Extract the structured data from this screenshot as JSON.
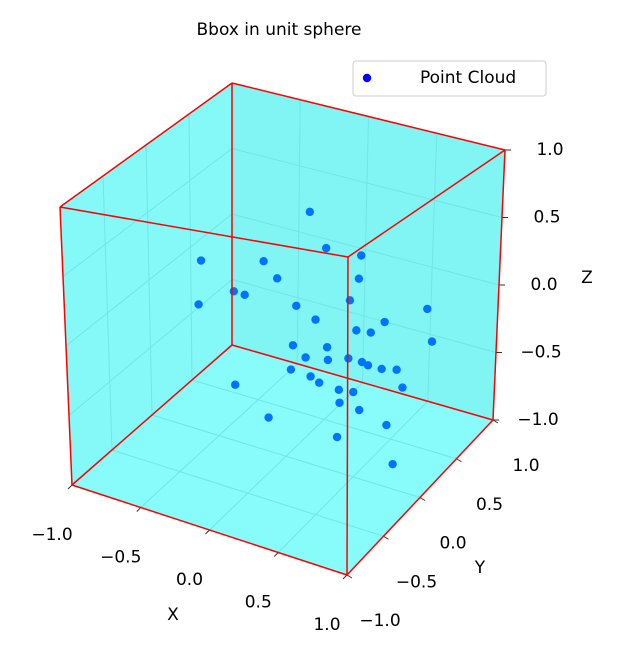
{
  "chart_data": {
    "type": "scatter3d",
    "title": "Bbox in unit sphere",
    "xlabel": "X",
    "ylabel": "Y",
    "zlabel": "Z",
    "xlim": [
      -1,
      1
    ],
    "ylim": [
      -1,
      1
    ],
    "zlim": [
      -1,
      1
    ],
    "xticks": [
      {
        "value": -1,
        "label": "−1.0"
      },
      {
        "value": -0.5,
        "label": "−0.5"
      },
      {
        "value": 0,
        "label": "0.0"
      },
      0.5,
      {
        "value": 1,
        "label": "1.0"
      }
    ],
    "yticks": [
      {
        "value": -1,
        "label": "−1.0"
      },
      {
        "value": -0.5,
        "label": "−0.5"
      },
      {
        "value": 0,
        "label": "0.0"
      },
      0.5,
      {
        "value": 1,
        "label": "1.0"
      }
    ],
    "zticks": [
      {
        "value": -1,
        "label": "−1.0"
      },
      {
        "value": -0.5,
        "label": "−0.5"
      },
      {
        "value": 0,
        "label": "0.0"
      },
      0.5,
      {
        "value": 1,
        "label": "1.0"
      }
    ],
    "grid": true,
    "legend": "upper right",
    "box_color": "#00ffff",
    "edge_color": "#ff0000",
    "series": [
      {
        "name": "Point Cloud",
        "color": "#0000ff",
        "x": [
          0.2,
          0.3,
          0.4,
          0.5,
          0.1,
          0.35,
          0.45,
          0.25,
          0.6,
          0.55,
          0.15,
          0.05,
          0.4,
          0.3,
          0.5,
          0.7,
          0.65,
          -0.1,
          -0.3,
          -0.5,
          -0.7,
          -0.8,
          -0.6,
          -0.4,
          0.8,
          0.9,
          0.85,
          0.75,
          0.2,
          0.0,
          0.6,
          -0.2,
          0.45,
          0.35,
          0.3,
          0.7,
          0.55,
          0.1,
          0.9,
          -0.3
        ],
        "y": [
          -0.1,
          0.0,
          0.1,
          -0.2,
          0.2,
          -0.3,
          0.3,
          0.1,
          0.0,
          -0.1,
          -0.2,
          0.0,
          0.2,
          -0.1,
          0.1,
          0.2,
          -0.2,
          0.3,
          0.4,
          0.2,
          0.1,
          0.3,
          0.5,
          0.4,
          0.1,
          0.3,
          -0.2,
          0.5,
          0.6,
          0.5,
          -0.4,
          -0.3,
          -0.1,
          0.2,
          0.4,
          0.0,
          0.3,
          -0.4,
          -0.2,
          0.8
        ],
        "z": [
          -0.2,
          -0.15,
          -0.25,
          -0.3,
          -0.1,
          -0.2,
          -0.15,
          -0.3,
          -0.2,
          -0.35,
          -0.25,
          -0.2,
          -0.1,
          -0.35,
          -0.25,
          -0.3,
          -0.4,
          -0.1,
          0.0,
          -0.05,
          -0.15,
          0.05,
          -0.25,
          0.1,
          -0.35,
          -0.1,
          -0.45,
          0.0,
          0.2,
          0.25,
          -0.5,
          -0.4,
          -0.45,
          0.1,
          0.15,
          -0.2,
          -0.05,
          -0.5,
          -0.7,
          0.3
        ]
      }
    ]
  }
}
